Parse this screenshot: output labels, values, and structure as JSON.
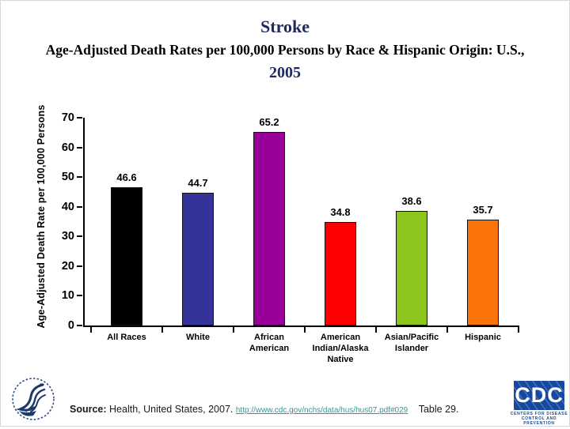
{
  "header": {
    "title": "Stroke",
    "subtitle": "Age-Adjusted Death Rates per 100,000 Persons by Race & Hispanic Origin: U.S.,",
    "year": "2005",
    "title_color": "#1F2A64"
  },
  "chart_data": {
    "type": "bar",
    "title": "Stroke — Age-Adjusted Death Rates per 100,000 Persons by Race & Hispanic Origin: U.S., 2005",
    "categories": [
      "All Races",
      "White",
      "African American",
      "American Indian/Alaska Native",
      "Asian/Pacific Islander",
      "Hispanic"
    ],
    "category_label_lines": [
      [
        "All Races"
      ],
      [
        "White"
      ],
      [
        "African",
        "American"
      ],
      [
        "American",
        "Indian/Alaska",
        "Native"
      ],
      [
        "Asian/Pacific",
        "Islander"
      ],
      [
        "Hispanic"
      ]
    ],
    "values": [
      46.6,
      44.7,
      65.2,
      34.8,
      38.6,
      35.7
    ],
    "bar_colors": [
      "#000000",
      "#333399",
      "#990099",
      "#FF0000",
      "#8DC41E",
      "#F97308"
    ],
    "ylabel": "Age-Adjusted Death Rate per 100,000 Persons",
    "xlabel": "",
    "ylim": [
      0,
      70
    ],
    "yticks": [
      0,
      10,
      20,
      30,
      40,
      50,
      60,
      70
    ],
    "grid": false,
    "legend": false,
    "value_labels_shown": true
  },
  "footer": {
    "source_label": "Source:",
    "source_text": "Health, United States, 2007.",
    "source_link": "http://www.cdc.gov/nchs/data/hus/hus07.pdf#029",
    "source_suffix": "Table 29.",
    "link_color": "#2E9A94"
  },
  "logos": {
    "hhs_alt": "U.S. Department of Health & Human Services seal",
    "cdc_text": "CDC",
    "cdc_caption_line1": "Centers for Disease",
    "cdc_caption_line2": "Control and Prevention",
    "cdc_blue": "#15489F"
  }
}
